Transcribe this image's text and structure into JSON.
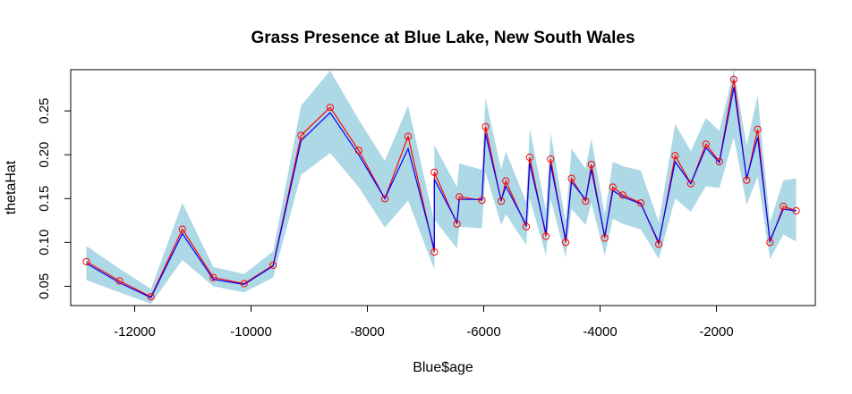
{
  "chart_data": {
    "type": "line",
    "title": "Grass Presence at Blue Lake, New South Wales",
    "xlabel": "Blue$age",
    "ylabel": "thetaHat",
    "xlim": [
      -13100,
      -300
    ],
    "ylim": [
      0.028,
      0.297
    ],
    "x_ticks": [
      -12000,
      -10000,
      -8000,
      -6000,
      -4000,
      -2000
    ],
    "x_tick_labels": [
      "-12000",
      "-10000",
      "-8000",
      "-6000",
      "-4000",
      "-2000"
    ],
    "y_ticks": [
      0.05,
      0.1,
      0.15,
      0.2,
      0.25
    ],
    "y_tick_labels": [
      "0.05",
      "0.10",
      "0.15",
      "0.20",
      "0.25"
    ],
    "grid": false,
    "colors": {
      "band": "#add8e6",
      "fit": "#0000ff",
      "observed": "#ff0000"
    },
    "x": [
      -12830,
      -12260,
      -11720,
      -11180,
      -10650,
      -10120,
      -9620,
      -9140,
      -8640,
      -8150,
      -7700,
      -7300,
      -6850,
      -6850,
      -6460,
      -6420,
      -6030,
      -5970,
      -5700,
      -5620,
      -5270,
      -5210,
      -4930,
      -4850,
      -4590,
      -4490,
      -4250,
      -4150,
      -3920,
      -3780,
      -3610,
      -3300,
      -2990,
      -2710,
      -2440,
      -2180,
      -1950,
      -1700,
      -1480,
      -1290,
      -1080,
      -850,
      -630
    ],
    "series": [
      {
        "values": [
          0.078,
          0.056,
          0.038,
          0.115,
          0.06,
          0.053,
          0.074,
          0.222,
          0.254,
          0.205,
          0.15,
          0.221,
          0.089,
          0.18,
          0.121,
          0.152,
          0.148,
          0.232,
          0.147,
          0.17,
          0.118,
          0.197,
          0.107,
          0.195,
          0.1,
          0.173,
          0.147,
          0.189,
          0.105,
          0.163,
          0.154,
          0.145,
          0.098,
          0.199,
          0.167,
          0.212,
          0.192,
          0.286,
          0.171,
          0.229,
          0.1,
          0.141,
          0.136
        ]
      },
      {
        "values": [
          0.076,
          0.054,
          0.037,
          0.11,
          0.058,
          0.052,
          0.073,
          0.216,
          0.248,
          0.2,
          0.15,
          0.207,
          0.092,
          0.172,
          0.123,
          0.149,
          0.149,
          0.224,
          0.148,
          0.164,
          0.12,
          0.19,
          0.11,
          0.189,
          0.103,
          0.169,
          0.149,
          0.183,
          0.107,
          0.159,
          0.152,
          0.144,
          0.1,
          0.192,
          0.167,
          0.208,
          0.191,
          0.277,
          0.173,
          0.22,
          0.102,
          0.138,
          0.136
        ]
      }
    ],
    "band_lower": [
      0.057,
      0.043,
      0.03,
      0.08,
      0.05,
      0.043,
      0.06,
      0.177,
      0.202,
      0.163,
      0.117,
      0.148,
      0.069,
      0.126,
      0.093,
      0.118,
      0.116,
      0.18,
      0.12,
      0.132,
      0.097,
      0.15,
      0.085,
      0.15,
      0.083,
      0.138,
      0.12,
      0.145,
      0.085,
      0.127,
      0.121,
      0.115,
      0.081,
      0.15,
      0.135,
      0.164,
      0.162,
      0.22,
      0.143,
      0.175,
      0.081,
      0.109,
      0.101
    ],
    "band_upper": [
      0.096,
      0.07,
      0.047,
      0.145,
      0.072,
      0.064,
      0.09,
      0.256,
      0.296,
      0.24,
      0.193,
      0.256,
      0.123,
      0.211,
      0.163,
      0.19,
      0.183,
      0.265,
      0.183,
      0.204,
      0.146,
      0.23,
      0.136,
      0.225,
      0.123,
      0.207,
      0.184,
      0.218,
      0.132,
      0.192,
      0.187,
      0.182,
      0.123,
      0.235,
      0.204,
      0.242,
      0.227,
      0.297,
      0.21,
      0.268,
      0.123,
      0.171,
      0.173
    ]
  }
}
